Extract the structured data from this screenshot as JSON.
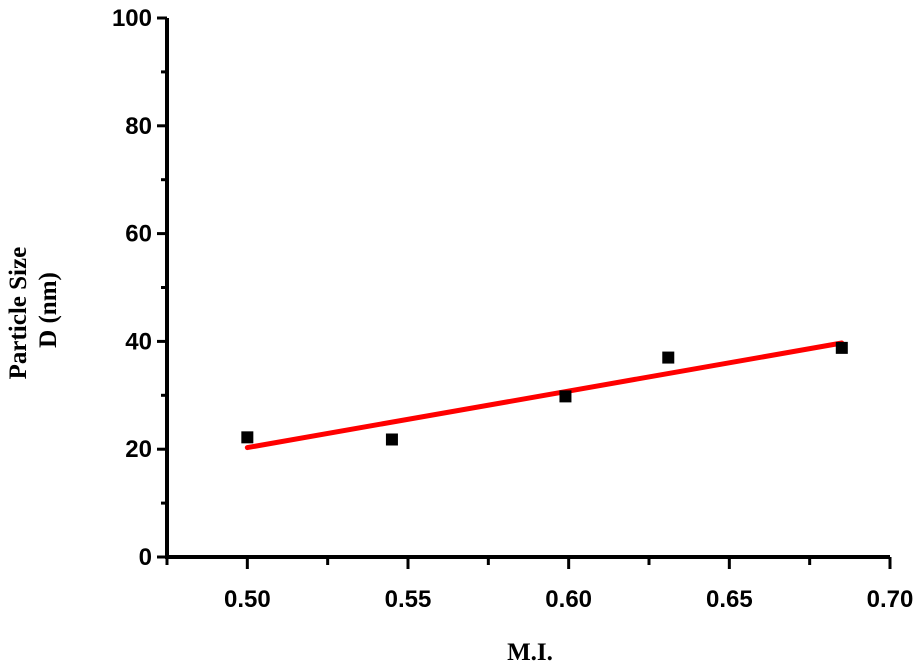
{
  "chart_data": {
    "type": "scatter",
    "xlabel": "M.I.",
    "ylabel_lines": [
      "Particle Size",
      "D (nm)"
    ],
    "xlim": [
      0.475,
      0.7
    ],
    "ylim": [
      0,
      100
    ],
    "x_ticks": [
      0.5,
      0.55,
      0.6,
      0.65,
      0.7
    ],
    "x_tick_labels": [
      "0.50",
      "0.55",
      "0.60",
      "0.65",
      "0.70"
    ],
    "y_ticks": [
      0,
      20,
      40,
      60,
      80,
      100
    ],
    "y_tick_labels": [
      "0",
      "20",
      "40",
      "60",
      "80",
      "100"
    ],
    "grid": false,
    "series": [
      {
        "kind": "points",
        "marker": "square",
        "color": "#000000",
        "x": [
          0.5,
          0.545,
          0.599,
          0.631,
          0.685
        ],
        "y": [
          22.2,
          21.8,
          29.8,
          37.0,
          38.8
        ]
      },
      {
        "kind": "fit-line",
        "color": "#ff0000",
        "x": [
          0.5,
          0.685
        ],
        "y": [
          20.3,
          39.7
        ]
      }
    ]
  }
}
